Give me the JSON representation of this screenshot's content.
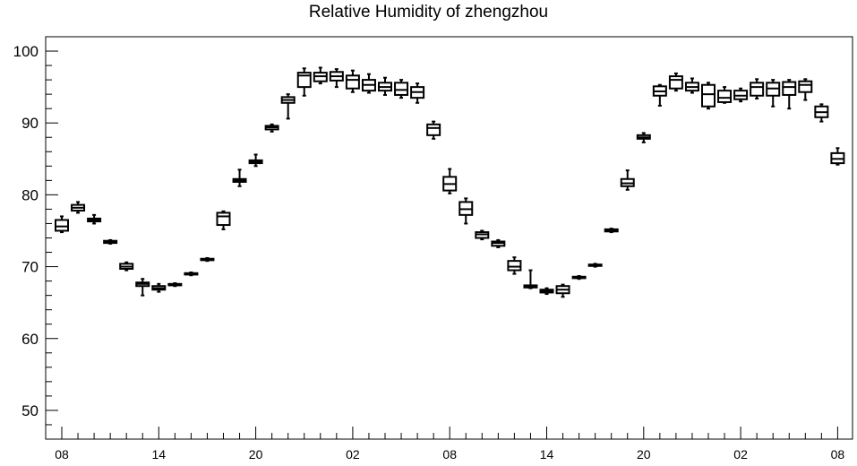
{
  "chart_data": {
    "type": "boxplot",
    "title": "Relative Humidity of zhengzhou",
    "xlabel": "",
    "ylabel": "",
    "ylim": [
      46,
      102
    ],
    "y_ticks": [
      50,
      60,
      70,
      80,
      90,
      100
    ],
    "x_tick_labels": [
      "08",
      "14",
      "20",
      "02",
      "08",
      "14",
      "20",
      "02",
      "08"
    ],
    "x_tick_hours": [
      0,
      6,
      12,
      18,
      24,
      30,
      36,
      42,
      48
    ],
    "grid": false,
    "legend": "none",
    "colors": {
      "box": "#000000",
      "background": "#ffffff"
    },
    "boxes": [
      {
        "hour": 0,
        "min": 74.8,
        "q1": 75.0,
        "median": 75.6,
        "q3": 76.5,
        "max": 77.0
      },
      {
        "hour": 1,
        "min": 77.5,
        "q1": 77.8,
        "median": 78.2,
        "q3": 78.6,
        "max": 79.0
      },
      {
        "hour": 2,
        "min": 76.0,
        "q1": 76.3,
        "median": 76.5,
        "q3": 76.7,
        "max": 77.2
      },
      {
        "hour": 3,
        "min": 73.2,
        "q1": 73.3,
        "median": 73.5,
        "q3": 73.6,
        "max": 73.7
      },
      {
        "hour": 4,
        "min": 69.5,
        "q1": 69.7,
        "median": 70.0,
        "q3": 70.4,
        "max": 70.6
      },
      {
        "hour": 5,
        "min": 66.0,
        "q1": 67.3,
        "median": 67.6,
        "q3": 67.8,
        "max": 68.3
      },
      {
        "hour": 6,
        "min": 66.5,
        "q1": 66.8,
        "median": 67.0,
        "q3": 67.3,
        "max": 67.6
      },
      {
        "hour": 7,
        "min": 67.3,
        "q1": 67.4,
        "median": 67.5,
        "q3": 67.6,
        "max": 67.7
      },
      {
        "hour": 8,
        "min": 68.8,
        "q1": 68.9,
        "median": 69.0,
        "q3": 69.1,
        "max": 69.2
      },
      {
        "hour": 9,
        "min": 70.8,
        "q1": 70.9,
        "median": 71.0,
        "q3": 71.1,
        "max": 71.2
      },
      {
        "hour": 10,
        "min": 75.2,
        "q1": 75.8,
        "median": 77.0,
        "q3": 77.5,
        "max": 77.7
      },
      {
        "hour": 11,
        "min": 81.2,
        "q1": 81.8,
        "median": 82.0,
        "q3": 82.2,
        "max": 83.5
      },
      {
        "hour": 12,
        "min": 84.0,
        "q1": 84.4,
        "median": 84.6,
        "q3": 84.8,
        "max": 85.6
      },
      {
        "hour": 13,
        "min": 88.8,
        "q1": 89.1,
        "median": 89.4,
        "q3": 89.6,
        "max": 89.8
      },
      {
        "hour": 14,
        "min": 90.6,
        "q1": 92.8,
        "median": 93.2,
        "q3": 93.6,
        "max": 94.0
      },
      {
        "hour": 15,
        "min": 93.8,
        "q1": 95.0,
        "median": 96.6,
        "q3": 97.0,
        "max": 97.6
      },
      {
        "hour": 16,
        "min": 95.5,
        "q1": 95.8,
        "median": 96.5,
        "q3": 97.0,
        "max": 97.7
      },
      {
        "hour": 17,
        "min": 95.0,
        "q1": 95.9,
        "median": 96.5,
        "q3": 97.1,
        "max": 97.5
      },
      {
        "hour": 18,
        "min": 94.3,
        "q1": 94.8,
        "median": 96.0,
        "q3": 96.6,
        "max": 97.3
      },
      {
        "hour": 19,
        "min": 94.2,
        "q1": 94.5,
        "median": 95.3,
        "q3": 96.0,
        "max": 96.8
      },
      {
        "hour": 20,
        "min": 93.9,
        "q1": 94.5,
        "median": 95.0,
        "q3": 95.6,
        "max": 96.3
      },
      {
        "hour": 21,
        "min": 93.5,
        "q1": 93.9,
        "median": 94.6,
        "q3": 95.6,
        "max": 96.0
      },
      {
        "hour": 22,
        "min": 92.8,
        "q1": 93.5,
        "median": 94.3,
        "q3": 95.0,
        "max": 95.5
      },
      {
        "hour": 23,
        "min": 87.8,
        "q1": 88.3,
        "median": 89.3,
        "q3": 89.8,
        "max": 90.2
      },
      {
        "hour": 24,
        "min": 80.2,
        "q1": 80.6,
        "median": 81.5,
        "q3": 82.5,
        "max": 83.6
      },
      {
        "hour": 25,
        "min": 76.0,
        "q1": 77.2,
        "median": 78.0,
        "q3": 79.0,
        "max": 79.5
      },
      {
        "hour": 26,
        "min": 73.8,
        "q1": 74.0,
        "median": 74.5,
        "q3": 74.8,
        "max": 75.0
      },
      {
        "hour": 27,
        "min": 72.7,
        "q1": 72.9,
        "median": 73.3,
        "q3": 73.5,
        "max": 73.7
      },
      {
        "hour": 28,
        "min": 69.0,
        "q1": 69.5,
        "median": 70.0,
        "q3": 70.8,
        "max": 71.3
      },
      {
        "hour": 29,
        "min": 67.0,
        "q1": 67.1,
        "median": 67.3,
        "q3": 67.4,
        "max": 69.5
      },
      {
        "hour": 30,
        "min": 66.2,
        "q1": 66.4,
        "median": 66.6,
        "q3": 66.8,
        "max": 67.0
      },
      {
        "hour": 31,
        "min": 65.8,
        "q1": 66.3,
        "median": 66.8,
        "q3": 67.3,
        "max": 67.5
      },
      {
        "hour": 32,
        "min": 68.3,
        "q1": 68.4,
        "median": 68.5,
        "q3": 68.6,
        "max": 68.7
      },
      {
        "hour": 33,
        "min": 70.0,
        "q1": 70.1,
        "median": 70.2,
        "q3": 70.3,
        "max": 70.4
      },
      {
        "hour": 34,
        "min": 74.8,
        "q1": 74.9,
        "median": 75.1,
        "q3": 75.2,
        "max": 75.3
      },
      {
        "hour": 35,
        "min": 80.7,
        "q1": 81.2,
        "median": 81.6,
        "q3": 82.2,
        "max": 83.4
      },
      {
        "hour": 36,
        "min": 87.3,
        "q1": 87.8,
        "median": 88.0,
        "q3": 88.3,
        "max": 88.6
      },
      {
        "hour": 37,
        "min": 92.4,
        "q1": 93.8,
        "median": 94.4,
        "q3": 95.1,
        "max": 95.3
      },
      {
        "hour": 38,
        "min": 94.5,
        "q1": 94.8,
        "median": 96.0,
        "q3": 96.5,
        "max": 96.9
      },
      {
        "hour": 39,
        "min": 94.2,
        "q1": 94.5,
        "median": 95.0,
        "q3": 95.6,
        "max": 96.2
      },
      {
        "hour": 40,
        "min": 92.0,
        "q1": 92.3,
        "median": 94.0,
        "q3": 95.3,
        "max": 95.6
      },
      {
        "hour": 41,
        "min": 92.8,
        "q1": 92.9,
        "median": 93.5,
        "q3": 94.5,
        "max": 95.0
      },
      {
        "hour": 42,
        "min": 93.0,
        "q1": 93.3,
        "median": 93.8,
        "q3": 94.5,
        "max": 94.8
      },
      {
        "hour": 43,
        "min": 93.4,
        "q1": 93.8,
        "median": 95.0,
        "q3": 95.6,
        "max": 96.1
      },
      {
        "hour": 44,
        "min": 92.3,
        "q1": 93.8,
        "median": 94.8,
        "q3": 95.6,
        "max": 96.0
      },
      {
        "hour": 45,
        "min": 92.0,
        "q1": 93.9,
        "median": 95.0,
        "q3": 95.7,
        "max": 96.0
      },
      {
        "hour": 46,
        "min": 93.2,
        "q1": 94.3,
        "median": 95.3,
        "q3": 95.8,
        "max": 96.1
      },
      {
        "hour": 47,
        "min": 90.2,
        "q1": 90.8,
        "median": 91.5,
        "q3": 92.3,
        "max": 92.6
      },
      {
        "hour": 48,
        "min": 84.2,
        "q1": 84.4,
        "median": 85.0,
        "q3": 85.8,
        "max": 86.5
      }
    ]
  }
}
